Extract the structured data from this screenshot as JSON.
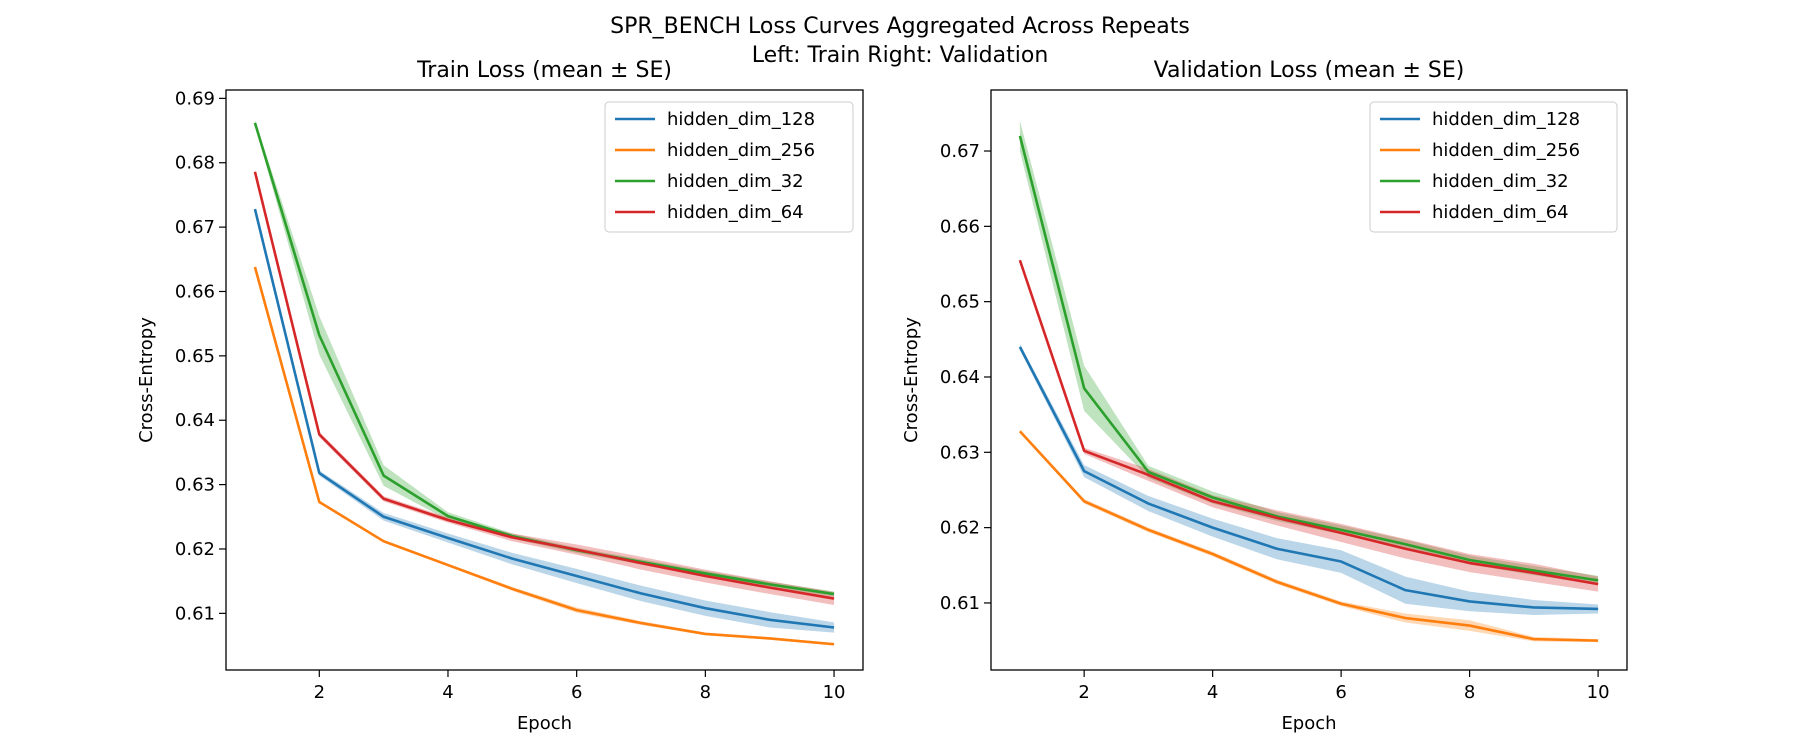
{
  "figure": {
    "suptitle_line1": "SPR_BENCH Loss Curves Aggregated Across Repeats",
    "suptitle_line2": "Left: Train   Right: Validation"
  },
  "colors": {
    "hidden_dim_128": "#1f77b4",
    "hidden_dim_256": "#ff7f0e",
    "hidden_dim_32": "#2ca02c",
    "hidden_dim_64": "#d62728"
  },
  "chart_data": [
    {
      "type": "line",
      "title": "Train Loss (mean ± SE)",
      "xlabel": "Epoch",
      "ylabel": "Cross-Entropy",
      "xlim": [
        0.55,
        10.45
      ],
      "ylim": [
        0.6012,
        0.6913
      ],
      "xticks": [
        2,
        4,
        6,
        8,
        10
      ],
      "yticks": [
        0.61,
        0.62,
        0.63,
        0.64,
        0.65,
        0.66,
        0.67,
        0.68,
        0.69
      ],
      "legend_position": "upper right",
      "grid": false,
      "x": [
        1,
        2,
        3,
        4,
        5,
        6,
        7,
        8,
        9,
        10
      ],
      "series": [
        {
          "name": "hidden_dim_128",
          "values": [
            0.6728,
            0.6318,
            0.625,
            0.6217,
            0.6185,
            0.6158,
            0.6131,
            0.6108,
            0.609,
            0.6078
          ],
          "se": [
            0.0002,
            0.0004,
            0.0006,
            0.0007,
            0.0009,
            0.0011,
            0.0012,
            0.0012,
            0.0012,
            0.0008
          ]
        },
        {
          "name": "hidden_dim_256",
          "values": [
            0.6638,
            0.6273,
            0.6212,
            0.6175,
            0.6138,
            0.6105,
            0.6085,
            0.6068,
            0.6061,
            0.6052
          ],
          "se": [
            0.0002,
            0.0002,
            0.0002,
            0.0002,
            0.0003,
            0.0004,
            0.0003,
            0.0002,
            0.0002,
            0.0002
          ]
        },
        {
          "name": "hidden_dim_32",
          "values": [
            0.6862,
            0.6532,
            0.6314,
            0.6251,
            0.622,
            0.6198,
            0.618,
            0.6162,
            0.6145,
            0.613
          ],
          "se": [
            0.0004,
            0.003,
            0.0016,
            0.0006,
            0.0004,
            0.0004,
            0.0004,
            0.0004,
            0.0004,
            0.0004
          ]
        },
        {
          "name": "hidden_dim_64",
          "values": [
            0.6786,
            0.6378,
            0.6278,
            0.6245,
            0.6218,
            0.6199,
            0.6178,
            0.6158,
            0.614,
            0.6123
          ],
          "se": [
            0.0002,
            0.0004,
            0.0004,
            0.0004,
            0.0006,
            0.0008,
            0.001,
            0.001,
            0.001,
            0.001
          ]
        }
      ]
    },
    {
      "type": "line",
      "title": "Validation Loss (mean ± SE)",
      "xlabel": "Epoch",
      "ylabel": "Cross-Entropy",
      "xlim": [
        0.55,
        10.45
      ],
      "ylim": [
        0.6011,
        0.6781
      ],
      "xticks": [
        2,
        4,
        6,
        8,
        10
      ],
      "yticks": [
        0.61,
        0.62,
        0.63,
        0.64,
        0.65,
        0.66,
        0.67
      ],
      "legend_position": "upper right",
      "grid": false,
      "x": [
        1,
        2,
        3,
        4,
        5,
        6,
        7,
        8,
        9,
        10
      ],
      "series": [
        {
          "name": "hidden_dim_128",
          "values": [
            0.644,
            0.6275,
            0.6232,
            0.62,
            0.6172,
            0.6155,
            0.6117,
            0.6102,
            0.6094,
            0.6092
          ],
          "se": [
            0.0004,
            0.0008,
            0.001,
            0.0012,
            0.0014,
            0.0015,
            0.0018,
            0.0013,
            0.001,
            0.0006
          ]
        },
        {
          "name": "hidden_dim_256",
          "values": [
            0.6328,
            0.6235,
            0.6197,
            0.6165,
            0.6128,
            0.6099,
            0.608,
            0.607,
            0.6052,
            0.605
          ],
          "se": [
            0.0002,
            0.0003,
            0.0003,
            0.0003,
            0.0003,
            0.0003,
            0.0006,
            0.0007,
            0.0003,
            0.0002
          ]
        },
        {
          "name": "hidden_dim_32",
          "values": [
            0.672,
            0.6385,
            0.6274,
            0.624,
            0.6215,
            0.6197,
            0.6178,
            0.6157,
            0.6143,
            0.613
          ],
          "se": [
            0.002,
            0.003,
            0.0008,
            0.0008,
            0.0006,
            0.0006,
            0.0006,
            0.0006,
            0.0006,
            0.0006
          ]
        },
        {
          "name": "hidden_dim_64",
          "values": [
            0.6555,
            0.6302,
            0.627,
            0.6235,
            0.6213,
            0.6193,
            0.6172,
            0.6153,
            0.614,
            0.6125
          ],
          "se": [
            0.0002,
            0.0004,
            0.0008,
            0.0008,
            0.001,
            0.0012,
            0.0013,
            0.0012,
            0.0012,
            0.001
          ]
        }
      ]
    }
  ]
}
